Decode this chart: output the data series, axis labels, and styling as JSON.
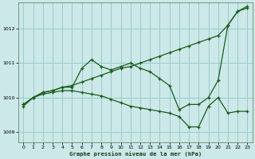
{
  "xlabel": "Graphe pression niveau de la mer (hPa)",
  "bg_color": "#cce8e8",
  "grid_color": "#99cccc",
  "line_color": "#1a5c1a",
  "xlim": [
    -0.5,
    23.5
  ],
  "ylim": [
    1008.7,
    1012.75
  ],
  "yticks": [
    1009,
    1010,
    1011,
    1012
  ],
  "xticks": [
    0,
    1,
    2,
    3,
    4,
    5,
    6,
    7,
    8,
    9,
    10,
    11,
    12,
    13,
    14,
    15,
    16,
    17,
    18,
    19,
    20,
    21,
    22,
    23
  ],
  "line1_x": [
    0,
    1,
    2,
    3,
    4,
    5,
    6,
    7,
    8,
    9,
    10,
    11,
    12,
    13,
    14,
    15,
    16,
    17,
    18,
    19,
    20,
    21,
    22,
    23
  ],
  "line1_y": [
    1009.8,
    1010.0,
    1010.15,
    1010.2,
    1010.3,
    1010.35,
    1010.45,
    1010.55,
    1010.65,
    1010.75,
    1010.85,
    1010.9,
    1011.0,
    1011.1,
    1011.2,
    1011.3,
    1011.4,
    1011.5,
    1011.6,
    1011.7,
    1011.8,
    1012.1,
    1012.5,
    1012.65
  ],
  "line2_x": [
    0,
    1,
    2,
    3,
    4,
    5,
    6,
    7,
    8,
    9,
    10,
    11,
    12,
    13,
    14,
    15,
    16,
    17,
    18,
    19,
    20,
    21,
    22,
    23
  ],
  "line2_y": [
    1009.8,
    1010.0,
    1010.15,
    1010.2,
    1010.3,
    1010.3,
    1010.85,
    1011.1,
    1010.9,
    1010.8,
    1010.9,
    1011.0,
    1010.85,
    1010.75,
    1010.55,
    1010.35,
    1009.65,
    1009.8,
    1009.8,
    1010.0,
    1010.5,
    1012.1,
    1012.5,
    1012.6
  ],
  "line3_x": [
    0,
    1,
    2,
    3,
    4,
    5,
    6,
    7,
    8,
    9,
    10,
    11,
    12,
    13,
    14,
    15,
    16,
    17,
    18,
    19,
    20,
    21,
    22,
    23
  ],
  "line3_y": [
    1009.75,
    1010.0,
    1010.1,
    1010.15,
    1010.2,
    1010.2,
    1010.15,
    1010.1,
    1010.05,
    1009.95,
    1009.85,
    1009.75,
    1009.7,
    1009.65,
    1009.6,
    1009.55,
    1009.45,
    1009.15,
    1009.15,
    1009.75,
    1010.0,
    1009.55,
    1009.6,
    1009.6
  ]
}
